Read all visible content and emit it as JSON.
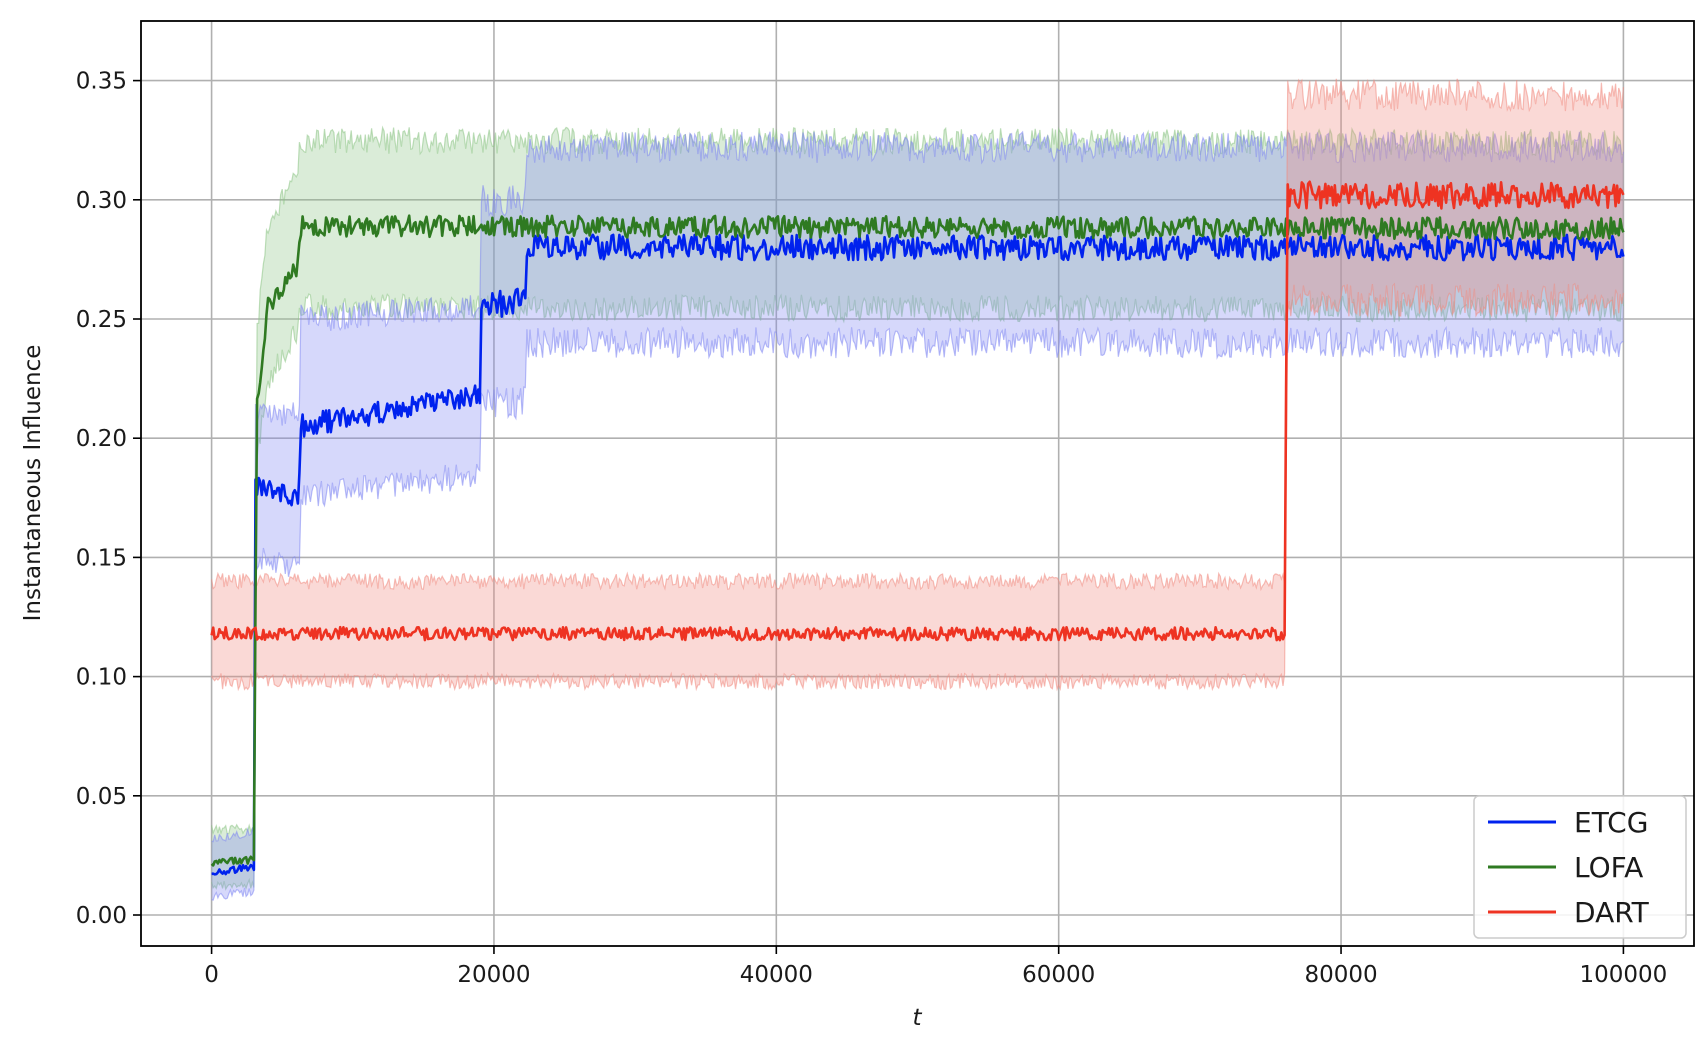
{
  "chart_data": {
    "type": "line",
    "title": "",
    "xlabel": "t",
    "ylabel": "Instantaneous Influence",
    "xlim": [
      -5000,
      105000
    ],
    "ylim": [
      -0.013,
      0.375
    ],
    "xticks": [
      0,
      20000,
      40000,
      60000,
      80000,
      100000
    ],
    "xtick_labels": [
      "0",
      "20000",
      "40000",
      "60000",
      "80000",
      "100000"
    ],
    "yticks": [
      0.0,
      0.05,
      0.1,
      0.15,
      0.2,
      0.25,
      0.3,
      0.35
    ],
    "ytick_labels": [
      "0.00",
      "0.05",
      "0.10",
      "0.15",
      "0.20",
      "0.25",
      "0.30",
      "0.35"
    ],
    "grid": true,
    "legend_position": "lower-right",
    "series": [
      {
        "name": "ETCG",
        "color": "#0022ee",
        "band_color": "#7f87f2",
        "x": [
          0,
          3000,
          3100,
          6200,
          6300,
          19000,
          19100,
          22200,
          22300,
          100000
        ],
        "mean": [
          0.018,
          0.02,
          0.18,
          0.175,
          0.205,
          0.218,
          0.255,
          0.258,
          0.28,
          0.28
        ],
        "lower": [
          0.008,
          0.01,
          0.15,
          0.145,
          0.175,
          0.185,
          0.215,
          0.215,
          0.24,
          0.24
        ],
        "upper": [
          0.032,
          0.035,
          0.21,
          0.21,
          0.25,
          0.255,
          0.3,
          0.3,
          0.322,
          0.322
        ]
      },
      {
        "name": "LOFA",
        "color": "#2f7a22",
        "band_color": "#8cc585",
        "x": [
          0,
          3000,
          3200,
          4000,
          5000,
          6000,
          6300,
          100000
        ],
        "mean": [
          0.022,
          0.023,
          0.215,
          0.255,
          0.262,
          0.272,
          0.289,
          0.288
        ],
        "lower": [
          0.012,
          0.013,
          0.19,
          0.225,
          0.235,
          0.245,
          0.255,
          0.254
        ],
        "upper": [
          0.036,
          0.036,
          0.245,
          0.29,
          0.3,
          0.31,
          0.325,
          0.324
        ]
      },
      {
        "name": "DART",
        "color": "#ee3322",
        "band_color": "#f08a80",
        "x": [
          0,
          76000,
          76200,
          100000
        ],
        "mean": [
          0.118,
          0.118,
          0.302,
          0.302
        ],
        "lower": [
          0.098,
          0.098,
          0.258,
          0.258
        ],
        "upper": [
          0.14,
          0.14,
          0.344,
          0.344
        ]
      }
    ]
  }
}
